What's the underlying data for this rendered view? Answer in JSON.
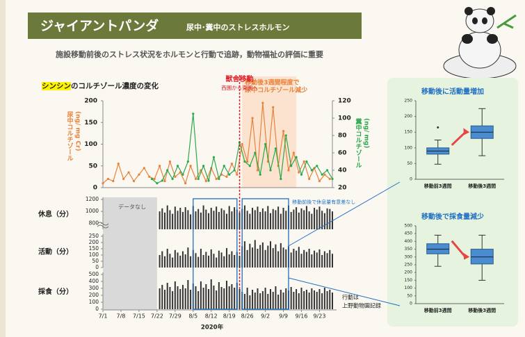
{
  "header": {
    "title": "ジャイアントパンダ",
    "subtitle": "尿中･糞中のストレスホルモン",
    "lead": "施設移動前後のストレス状況をホルモンと行動で追跡，動物福祉の評価に重要"
  },
  "chart_data": [
    {
      "type": "line",
      "title_highlight": "シンシン",
      "title": "のコルチゾール濃度の変化",
      "ylabel": [
        "尿中コルチゾール",
        "(ng/ mg Cr)"
      ],
      "y2label": [
        "糞中コルチゾール",
        "(ng/ mg)"
      ],
      "xlim": [
        "7/1",
        "9/28"
      ],
      "ylim": [
        0,
        200
      ],
      "yticks": [
        0,
        50,
        100,
        150,
        200
      ],
      "y2lim": [
        20,
        120
      ],
      "y2ticks": [
        20,
        40,
        60,
        80,
        100,
        120
      ],
      "event": {
        "x": "8/23",
        "label": "獣舎移動",
        "sublabel": "西園から東園へ",
        "color": "#e0202a"
      },
      "highlight": {
        "range": [
          "8/24",
          "9/14"
        ],
        "label": [
          "移動後3週間程度で",
          "尿中コルチゾール減少"
        ],
        "color": "#fbe3d0"
      },
      "series": [
        {
          "color": "#e8823a",
          "x": [
            "7/1",
            "7/3",
            "7/5",
            "7/7",
            "7/9",
            "7/11",
            "7/13",
            "7/15",
            "7/17",
            "7/19",
            "7/21",
            "7/23",
            "7/25",
            "7/27",
            "7/29",
            "7/31",
            "8/2",
            "8/4",
            "8/6",
            "8/8",
            "8/10",
            "8/12",
            "8/14",
            "8/16",
            "8/18",
            "8/20",
            "8/22",
            "8/24",
            "8/26",
            "8/28",
            "8/30",
            "9/1",
            "9/3",
            "9/5",
            "9/7",
            "9/9",
            "9/11",
            "9/13",
            "9/15",
            "9/17",
            "9/19",
            "9/21",
            "9/23",
            "9/25",
            "9/27"
          ],
          "values": [
            10,
            20,
            15,
            55,
            20,
            35,
            15,
            30,
            45,
            25,
            20,
            50,
            15,
            60,
            25,
            35,
            10,
            50,
            20,
            40,
            15,
            45,
            20,
            30,
            25,
            55,
            30,
            100,
            60,
            160,
            40,
            195,
            60,
            185,
            50,
            130,
            40,
            80,
            35,
            60,
            20,
            45,
            15,
            30,
            20
          ]
        },
        {
          "color": "#2aa84a",
          "axis": "y2",
          "x": [
            "7/20",
            "7/22",
            "7/24",
            "7/26",
            "7/28",
            "7/30",
            "8/1",
            "8/3",
            "8/5",
            "8/7",
            "8/9",
            "8/11",
            "8/13",
            "8/15",
            "8/17",
            "8/19",
            "8/21",
            "8/23",
            "8/25",
            "8/27",
            "8/29",
            "8/31",
            "9/2",
            "9/4",
            "9/6",
            "9/8",
            "9/10",
            "9/12",
            "9/14",
            "9/16",
            "9/18",
            "9/20",
            "9/22",
            "9/24",
            "9/26",
            "9/28"
          ],
          "values": [
            30,
            25,
            28,
            40,
            30,
            45,
            35,
            50,
            105,
            30,
            45,
            28,
            55,
            30,
            45,
            35,
            40,
            72,
            50,
            45,
            60,
            35,
            70,
            40,
            65,
            30,
            80,
            45,
            55,
            35,
            50,
            40,
            45,
            35,
            40,
            30
          ]
        }
      ]
    },
    {
      "type": "bar",
      "xlim": [
        "7/1",
        "9/28"
      ],
      "xticks": [
        "7/1",
        "7/8",
        "7/15",
        "7/22",
        "7/29",
        "8/5",
        "8/12",
        "8/19",
        "8/26",
        "9/2",
        "9/9",
        "9/16",
        "9/23"
      ],
      "xlabel": "2020年",
      "no_data": {
        "label": "データなし",
        "range": [
          "7/1",
          "7/22"
        ]
      },
      "frames": [
        [
          "8/5",
          "8/22"
        ],
        [
          "8/24",
          "9/11"
        ]
      ],
      "frame_color": "#1f6fc4",
      "note": "移動前後で休息量有意差なし",
      "source": [
        "行動は",
        "上野動物園記録"
      ],
      "x": [
        "7/23",
        "7/24",
        "7/25",
        "7/26",
        "7/27",
        "7/28",
        "7/29",
        "7/30",
        "7/31",
        "8/1",
        "8/2",
        "8/3",
        "8/4",
        "8/5",
        "8/6",
        "8/7",
        "8/8",
        "8/9",
        "8/10",
        "8/11",
        "8/12",
        "8/13",
        "8/14",
        "8/15",
        "8/16",
        "8/17",
        "8/18",
        "8/19",
        "8/20",
        "8/21",
        "8/22",
        "8/23",
        "8/24",
        "8/25",
        "8/26",
        "8/27",
        "8/28",
        "8/29",
        "8/30",
        "8/31",
        "9/1",
        "9/2",
        "9/3",
        "9/4",
        "9/5",
        "9/6",
        "9/7",
        "9/8",
        "9/9",
        "9/10",
        "9/11",
        "9/12",
        "9/13",
        "9/14",
        "9/15",
        "9/16",
        "9/17",
        "9/18",
        "9/19",
        "9/20",
        "9/21",
        "9/22",
        "9/23",
        "9/24",
        "9/25",
        "9/26",
        "9/27",
        "9/28"
      ],
      "series": [
        {
          "name": "休息（分）",
          "color": "#333333",
          "ylim": [
            700,
            1200
          ],
          "yticks": [
            800,
            1000,
            1200
          ],
          "values": [
            1000,
            1050,
            980,
            1100,
            1020,
            960,
            1080,
            1010,
            1060,
            990,
            1070,
            1020,
            950,
            1090,
            1000,
            1040,
            980,
            1100,
            1030,
            970,
            1060,
            1010,
            1080,
            990,
            1050,
            1020,
            960,
            1090,
            1000,
            1070,
            1030,
            980,
            1040,
            1100,
            1010,
            960,
            1060,
            1020,
            1080,
            990,
            1050,
            1000,
            1090,
            970,
            1040,
            1020,
            1080,
            960,
            1060,
            1010,
            1100,
            990,
            1030,
            1070,
            980,
            1050,
            1020,
            1090,
            1000,
            960,
            1060,
            1030,
            1080,
            1010,
            970,
            1050,
            1040,
            1000
          ]
        },
        {
          "name": "活動（分）",
          "color": "#333333",
          "ylim": [
            0,
            250
          ],
          "yticks": [
            0,
            50,
            100,
            150,
            200,
            250
          ],
          "values": [
            100,
            130,
            90,
            150,
            110,
            80,
            140,
            120,
            95,
            130,
            105,
            160,
            90,
            140,
            115,
            85,
            150,
            100,
            125,
            95,
            145,
            110,
            80,
            135,
            120,
            90,
            155,
            105,
            130,
            100,
            125,
            95,
            170,
            210,
            140,
            190,
            160,
            220,
            150,
            180,
            200,
            140,
            175,
            210,
            155,
            185,
            130,
            195,
            160,
            145,
            170,
            120,
            150,
            135,
            165,
            110,
            140,
            125,
            150,
            105,
            135,
            120,
            145,
            100,
            130,
            115,
            140,
            110
          ]
        },
        {
          "name": "採食（分）",
          "color": "#333333",
          "ylim": [
            0,
            500
          ],
          "yticks": [
            0,
            100,
            200,
            300,
            400,
            500
          ],
          "values": [
            300,
            350,
            280,
            380,
            320,
            260,
            400,
            330,
            290,
            350,
            300,
            420,
            280,
            370,
            330,
            260,
            400,
            310,
            360,
            290,
            430,
            340,
            270,
            390,
            320,
            300,
            410,
            330,
            360,
            310,
            380,
            290,
            250,
            220,
            310,
            200,
            280,
            240,
            300,
            230,
            260,
            310,
            220,
            290,
            250,
            330,
            210,
            280,
            240,
            300,
            270,
            320,
            250,
            290,
            230,
            310,
            260,
            280,
            240,
            300,
            270,
            250,
            290,
            230,
            310,
            260,
            280,
            240
          ]
        }
      ]
    },
    {
      "type": "box",
      "title": "移動後に活動量増加",
      "categories": [
        "移動前3週間",
        "移動後3週間"
      ],
      "color": "#4a8ccf",
      "ylim": [
        0,
        250
      ],
      "yticks": [
        0,
        50,
        100,
        150,
        200,
        250
      ],
      "boxes": [
        {
          "min": 48,
          "q1": 80,
          "median": 90,
          "q3": 100,
          "max": 125,
          "outliers": [
            165
          ]
        },
        {
          "min": 75,
          "q1": 130,
          "median": 150,
          "q3": 170,
          "max": 225,
          "outliers": []
        }
      ]
    },
    {
      "type": "box",
      "title": "移動後で採食量減少",
      "categories": [
        "移動前3週間",
        "移動後3週間"
      ],
      "color": "#4a8ccf",
      "ylim": [
        0,
        500
      ],
      "yticks": [
        0,
        50,
        100,
        150,
        200,
        250,
        300,
        350,
        400,
        450,
        500
      ],
      "boxes": [
        {
          "min": 240,
          "q1": 320,
          "median": 350,
          "q3": 385,
          "max": 440,
          "outliers": []
        },
        {
          "min": 150,
          "q1": 255,
          "median": 300,
          "q3": 350,
          "max": 440,
          "outliers": []
        }
      ]
    }
  ]
}
